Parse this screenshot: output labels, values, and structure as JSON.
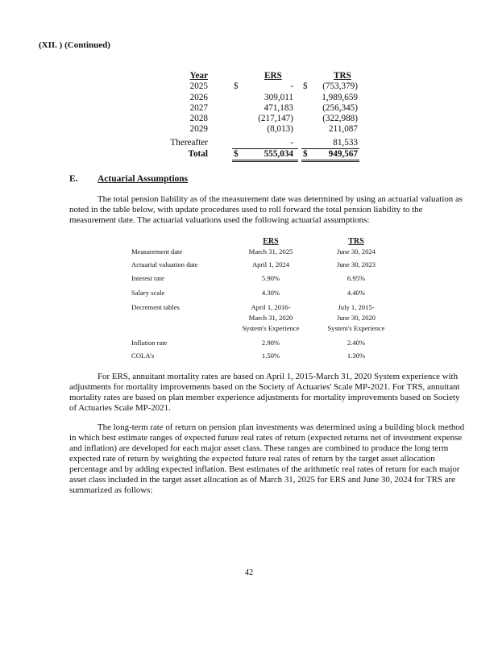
{
  "header": "(XII. ) (Continued)",
  "amort_table": {
    "headers": [
      "Year",
      "ERS",
      "TRS"
    ],
    "currency": "$",
    "rows": [
      {
        "year": "2025",
        "ers": "-",
        "trs": "(753,379)",
        "dollar": true
      },
      {
        "year": "2026",
        "ers": "309,011",
        "trs": "1,989,659"
      },
      {
        "year": "2027",
        "ers": "471,183",
        "trs": "(256,345)"
      },
      {
        "year": "2028",
        "ers": "(217,147)",
        "trs": "(322,988)"
      },
      {
        "year": "2029",
        "ers": "(8,013)",
        "trs": "211,087"
      },
      {
        "year": "Thereafter",
        "ers": "-",
        "trs": "81,533"
      }
    ],
    "total": {
      "label": "Total",
      "ers": "555,034",
      "trs": "949,567"
    }
  },
  "section": {
    "letter": "E.",
    "title": "Actuarial Assumptions"
  },
  "intro": "The total pension liability as of the measurement date was determined by using an actuarial valuation as noted in the table below, with update procedures used to roll forward the total pension liability to the measurement date. The actuarial valuations used the following actuarial assumptions:",
  "assumptions": {
    "headers": [
      "ERS",
      "TRS"
    ],
    "rows": [
      {
        "label": "Measurement date",
        "ers": [
          "March 31, 2025"
        ],
        "trs": [
          "June 30, 2024"
        ]
      },
      {
        "label": "Actuarial valuation date",
        "ers": [
          "April 1, 2024"
        ],
        "trs": [
          "June 30, 2023"
        ]
      },
      {
        "label": "Interest rate",
        "ers": [
          "5.90%"
        ],
        "trs": [
          "6.95%"
        ]
      },
      {
        "label": "Salary scale",
        "ers": [
          "4.30%"
        ],
        "trs": [
          "4.40%"
        ]
      },
      {
        "label": "Decrement tables",
        "ers": [
          "April 1, 2016-",
          "March 31, 2020",
          "System's Experience"
        ],
        "trs": [
          "July 1, 2015-",
          "June 30, 2020",
          "System's Experience"
        ]
      },
      {
        "label": "Inflation rate",
        "ers": [
          "2.90%"
        ],
        "trs": [
          "2.40%"
        ]
      },
      {
        "label": "COLA's",
        "ers": [
          "1.50%"
        ],
        "trs": [
          "1.30%"
        ]
      }
    ]
  },
  "mortality": "For ERS, annuitant mortality rates are based on April 1, 2015-March 31, 2020 System experience with adjustments for mortality improvements based on the Society of Actuaries' Scale MP-2021. For TRS, annuitant mortality rates are based on plan member experience adjustments for mortality improvements based on Society of Actuaries Scale MP-2021.",
  "returns": "The long-term rate of return on pension plan investments was determined using a building block method in which best estimate ranges of expected future real rates of return (expected returns net of investment expense and inflation) are developed for each major asset class. These ranges are combined to produce the long term expected rate of return by weighting the expected future real rates of return by the target asset allocation percentage and by adding expected inflation. Best estimates of the arithmetic real rates of return for each major asset class included in the target asset allocation as of March 31, 2025 for ERS and June 30, 2024 for TRS are summarized as follows:",
  "page_number": "42"
}
